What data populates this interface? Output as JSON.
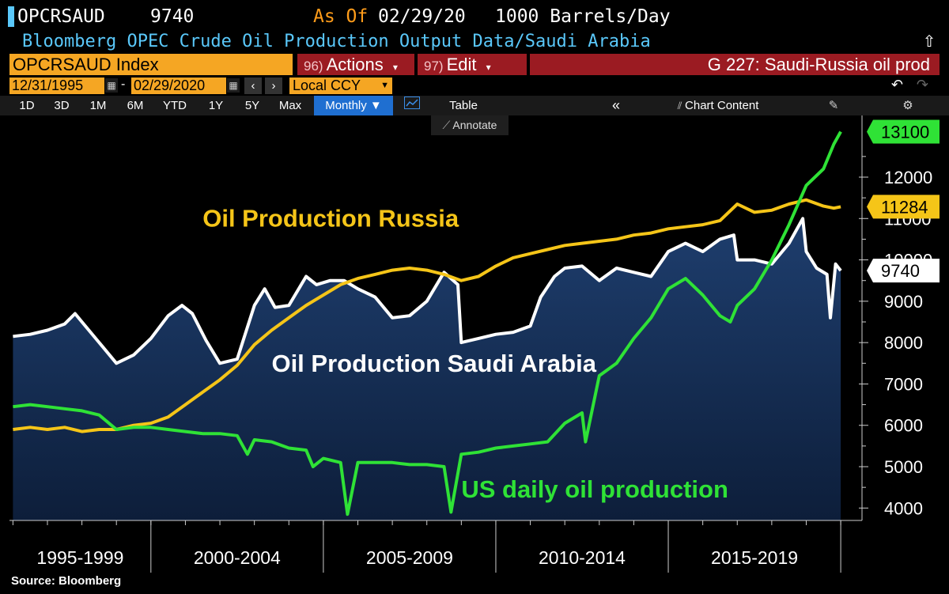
{
  "header": {
    "ticker": "OPCRSAUD",
    "last_value": "9740",
    "as_of_label": "As Of",
    "as_of_date": "02/29/20",
    "units": "1000 Barrels/Day",
    "description": "Bloomberg OPEC Crude Oil Production Output Data/Saudi Arabia"
  },
  "toolbar": {
    "index_label": "OPCRSAUD Index",
    "actions_num": "96)",
    "actions_label": "Actions",
    "edit_num": "97)",
    "edit_label": "Edit",
    "graph_title": "G 227: Saudi-Russia oil prod",
    "start_date": "12/31/1995",
    "end_date": "02/29/2020",
    "currency": "Local CCY",
    "periods": [
      "1D",
      "3D",
      "1M",
      "6M",
      "YTD",
      "1Y",
      "5Y",
      "Max"
    ],
    "frequency": "Monthly ▼",
    "table_label": "Table",
    "chart_content_label": "Chart Content",
    "annotate_label": "Annotate"
  },
  "chart_data": {
    "type": "line",
    "title": "",
    "xlabel": "",
    "ylabel": "",
    "xlim": [
      1995.9,
      2020.25
    ],
    "ylim": [
      3700,
      13300
    ],
    "yticks": [
      4000,
      5000,
      6000,
      7000,
      8000,
      9000,
      10000,
      11000,
      12000
    ],
    "ytick_labels": [
      "4000",
      "5000",
      "6000",
      "7000",
      "8000",
      "9000",
      "10000",
      "11000",
      "12000"
    ],
    "x_period_labels": [
      {
        "label": "1995-1999",
        "start": 1995.9,
        "end": 2000.0
      },
      {
        "label": "2000-2004",
        "start": 2000.0,
        "end": 2005.0
      },
      {
        "label": "2005-2009",
        "start": 2005.0,
        "end": 2010.0
      },
      {
        "label": "2010-2014",
        "start": 2010.0,
        "end": 2015.0
      },
      {
        "label": "2015-2019",
        "start": 2015.0,
        "end": 2020.0
      }
    ],
    "grid": false,
    "series": [
      {
        "name": "Oil Production Russia",
        "color": "#f5c518",
        "last_label": "11284",
        "points": [
          [
            1996.0,
            5900
          ],
          [
            1996.5,
            5950
          ],
          [
            1997.0,
            5900
          ],
          [
            1997.5,
            5950
          ],
          [
            1998.0,
            5850
          ],
          [
            1998.5,
            5900
          ],
          [
            1999.0,
            5900
          ],
          [
            1999.5,
            6000
          ],
          [
            2000.0,
            6050
          ],
          [
            2000.5,
            6200
          ],
          [
            2001.0,
            6500
          ],
          [
            2001.5,
            6800
          ],
          [
            2002.0,
            7100
          ],
          [
            2002.5,
            7450
          ],
          [
            2003.0,
            7950
          ],
          [
            2003.5,
            8300
          ],
          [
            2004.0,
            8600
          ],
          [
            2004.5,
            8900
          ],
          [
            2005.0,
            9150
          ],
          [
            2005.5,
            9400
          ],
          [
            2006.0,
            9550
          ],
          [
            2006.5,
            9650
          ],
          [
            2007.0,
            9750
          ],
          [
            2007.5,
            9800
          ],
          [
            2008.0,
            9750
          ],
          [
            2008.5,
            9650
          ],
          [
            2009.0,
            9500
          ],
          [
            2009.5,
            9600
          ],
          [
            2010.0,
            9850
          ],
          [
            2010.5,
            10050
          ],
          [
            2011.0,
            10150
          ],
          [
            2011.5,
            10250
          ],
          [
            2012.0,
            10350
          ],
          [
            2012.5,
            10400
          ],
          [
            2013.0,
            10450
          ],
          [
            2013.5,
            10500
          ],
          [
            2014.0,
            10600
          ],
          [
            2014.5,
            10650
          ],
          [
            2015.0,
            10750
          ],
          [
            2015.5,
            10800
          ],
          [
            2016.0,
            10850
          ],
          [
            2016.5,
            10950
          ],
          [
            2017.0,
            11350
          ],
          [
            2017.5,
            11150
          ],
          [
            2018.0,
            11200
          ],
          [
            2018.5,
            11350
          ],
          [
            2019.0,
            11450
          ],
          [
            2019.5,
            11300
          ],
          [
            2019.8,
            11250
          ],
          [
            2020.0,
            11284
          ]
        ]
      },
      {
        "name": "Oil Production Saudi Arabia",
        "color": "#ffffff",
        "last_label": "9740",
        "points": [
          [
            1996.0,
            8150
          ],
          [
            1996.5,
            8200
          ],
          [
            1997.0,
            8300
          ],
          [
            1997.5,
            8450
          ],
          [
            1997.8,
            8700
          ],
          [
            1998.0,
            8500
          ],
          [
            1998.5,
            8000
          ],
          [
            1999.0,
            7500
          ],
          [
            1999.5,
            7700
          ],
          [
            2000.0,
            8100
          ],
          [
            2000.5,
            8650
          ],
          [
            2000.9,
            8900
          ],
          [
            2001.2,
            8700
          ],
          [
            2001.6,
            8050
          ],
          [
            2002.0,
            7500
          ],
          [
            2002.5,
            7600
          ],
          [
            2003.0,
            8900
          ],
          [
            2003.3,
            9300
          ],
          [
            2003.6,
            8850
          ],
          [
            2004.0,
            8900
          ],
          [
            2004.5,
            9600
          ],
          [
            2004.8,
            9400
          ],
          [
            2005.2,
            9500
          ],
          [
            2005.6,
            9500
          ],
          [
            2006.0,
            9300
          ],
          [
            2006.5,
            9100
          ],
          [
            2007.0,
            8600
          ],
          [
            2007.5,
            8650
          ],
          [
            2008.0,
            9000
          ],
          [
            2008.5,
            9700
          ],
          [
            2008.9,
            9400
          ],
          [
            2009.0,
            8000
          ],
          [
            2009.5,
            8100
          ],
          [
            2010.0,
            8200
          ],
          [
            2010.5,
            8250
          ],
          [
            2011.0,
            8400
          ],
          [
            2011.3,
            9100
          ],
          [
            2011.7,
            9600
          ],
          [
            2012.0,
            9800
          ],
          [
            2012.5,
            9850
          ],
          [
            2013.0,
            9500
          ],
          [
            2013.5,
            9800
          ],
          [
            2014.0,
            9700
          ],
          [
            2014.5,
            9600
          ],
          [
            2015.0,
            10200
          ],
          [
            2015.5,
            10400
          ],
          [
            2016.0,
            10200
          ],
          [
            2016.5,
            10500
          ],
          [
            2016.9,
            10600
          ],
          [
            2017.0,
            10000
          ],
          [
            2017.5,
            10000
          ],
          [
            2018.0,
            9900
          ],
          [
            2018.5,
            10400
          ],
          [
            2018.9,
            11000
          ],
          [
            2019.0,
            10200
          ],
          [
            2019.3,
            9800
          ],
          [
            2019.6,
            9650
          ],
          [
            2019.7,
            8600
          ],
          [
            2019.85,
            9900
          ],
          [
            2020.0,
            9740
          ]
        ]
      },
      {
        "name": "US daily oil production",
        "color": "#2fe236",
        "last_label": "13100",
        "points": [
          [
            1996.0,
            6450
          ],
          [
            1996.5,
            6500
          ],
          [
            1997.0,
            6450
          ],
          [
            1997.5,
            6400
          ],
          [
            1998.0,
            6350
          ],
          [
            1998.5,
            6250
          ],
          [
            1999.0,
            5900
          ],
          [
            1999.5,
            5950
          ],
          [
            2000.0,
            5950
          ],
          [
            2000.5,
            5900
          ],
          [
            2001.0,
            5850
          ],
          [
            2001.5,
            5800
          ],
          [
            2002.0,
            5800
          ],
          [
            2002.5,
            5750
          ],
          [
            2002.8,
            5300
          ],
          [
            2003.0,
            5650
          ],
          [
            2003.5,
            5600
          ],
          [
            2004.0,
            5450
          ],
          [
            2004.5,
            5400
          ],
          [
            2004.7,
            5000
          ],
          [
            2005.0,
            5200
          ],
          [
            2005.5,
            5100
          ],
          [
            2005.7,
            3850
          ],
          [
            2006.0,
            5100
          ],
          [
            2006.5,
            5100
          ],
          [
            2007.0,
            5100
          ],
          [
            2007.5,
            5050
          ],
          [
            2008.0,
            5050
          ],
          [
            2008.5,
            5000
          ],
          [
            2008.7,
            3900
          ],
          [
            2009.0,
            5300
          ],
          [
            2009.5,
            5350
          ],
          [
            2010.0,
            5450
          ],
          [
            2010.5,
            5500
          ],
          [
            2011.0,
            5550
          ],
          [
            2011.5,
            5600
          ],
          [
            2012.0,
            6050
          ],
          [
            2012.5,
            6300
          ],
          [
            2012.6,
            5600
          ],
          [
            2013.0,
            7200
          ],
          [
            2013.5,
            7500
          ],
          [
            2014.0,
            8100
          ],
          [
            2014.5,
            8600
          ],
          [
            2015.0,
            9300
          ],
          [
            2015.5,
            9550
          ],
          [
            2016.0,
            9150
          ],
          [
            2016.5,
            8650
          ],
          [
            2016.8,
            8500
          ],
          [
            2017.0,
            8900
          ],
          [
            2017.5,
            9300
          ],
          [
            2018.0,
            10000
          ],
          [
            2018.5,
            10850
          ],
          [
            2019.0,
            11800
          ],
          [
            2019.5,
            12200
          ],
          [
            2019.8,
            12800
          ],
          [
            2020.0,
            13100
          ]
        ]
      }
    ],
    "annotations": [
      {
        "text": "Oil Production Russia",
        "color": "#f5c518",
        "x": 2001.5,
        "y": 10800
      },
      {
        "text": "Oil Production Saudi Arabia",
        "color": "#ffffff",
        "x": 2003.5,
        "y": 7300
      },
      {
        "text": "US daily oil production",
        "color": "#2fe236",
        "x": 2009.0,
        "y": 4250
      }
    ]
  },
  "footer": {
    "source": "Source: Bloomberg"
  }
}
